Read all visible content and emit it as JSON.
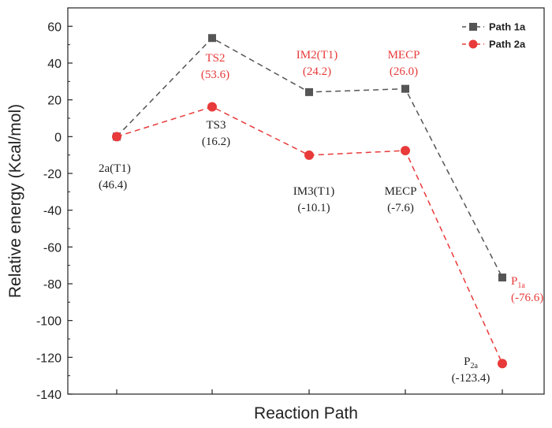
{
  "chart_data": {
    "type": "line",
    "title": "",
    "xlabel": "Reaction Path",
    "ylabel": "Relative energy (Kcal/mol)",
    "ylim": [
      -140,
      70
    ],
    "yticks": [
      60,
      40,
      20,
      0,
      -20,
      -40,
      -60,
      -80,
      -100,
      -120,
      -140
    ],
    "yticks_text": [
      "60",
      "40",
      "20",
      "0",
      "-20",
      "-40",
      "-60",
      "-80",
      "-100",
      "-120",
      "-140"
    ],
    "x": [
      1,
      2,
      3,
      4,
      5
    ],
    "series": [
      {
        "name": "Path 1a",
        "color": "#555555",
        "marker": "square",
        "values": [
          0,
          53.6,
          24.2,
          26.0,
          -76.6
        ]
      },
      {
        "name": "Path 2a",
        "color": "#e83a3a",
        "marker": "circle",
        "values": [
          0,
          16.2,
          -10.1,
          -7.6,
          -123.4
        ]
      }
    ],
    "legend": {
      "placement": "top-right"
    },
    "annotations": [
      {
        "color": "#222222",
        "anchor": "start",
        "lines": [
          {
            "text": "2a(T1)"
          },
          {
            "text": "(46.4)"
          }
        ]
      },
      {
        "color": "#e83a3a",
        "anchor": "middle",
        "lines": [
          {
            "text": "TS2"
          },
          {
            "text": "(53.6)"
          }
        ]
      },
      {
        "color": "#222222",
        "anchor": "middle",
        "lines": [
          {
            "text": "TS3"
          },
          {
            "text": "(16.2)"
          }
        ]
      },
      {
        "color": "#e83a3a",
        "anchor": "middle",
        "lines": [
          {
            "text": "IM2(T1)"
          },
          {
            "text": "(24.2)"
          }
        ]
      },
      {
        "color": "#222222",
        "anchor": "middle",
        "lines": [
          {
            "text": "IM3(T1)"
          },
          {
            "text": "(-10.1)"
          }
        ]
      },
      {
        "color": "#e83a3a",
        "anchor": "middle",
        "lines": [
          {
            "text": "MECP"
          },
          {
            "text": "(26.0)"
          }
        ]
      },
      {
        "color": "#222222",
        "anchor": "middle",
        "lines": [
          {
            "text": "MECP"
          },
          {
            "text": "(-7.6)"
          }
        ]
      },
      {
        "color": "#e83a3a",
        "anchor": "start",
        "lines": [
          {
            "text": "P",
            "sub": "1a"
          },
          {
            "text": "(-76.6)"
          }
        ]
      },
      {
        "color": "#222222",
        "anchor": "middle",
        "lines": [
          {
            "text": "P",
            "sub": "2a"
          },
          {
            "text": "(-123.4)"
          }
        ]
      }
    ]
  }
}
